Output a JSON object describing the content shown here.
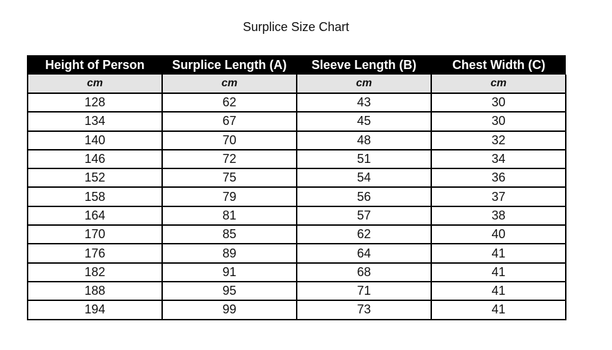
{
  "title": "Surplice Size Chart",
  "columns": [
    "Height of Person",
    "Surplice Length (A)",
    "Sleeve Length (B)",
    "Chest Width (C)"
  ],
  "units": [
    "cm",
    "cm",
    "cm",
    "cm"
  ],
  "rows": [
    [
      "128",
      "62",
      "43",
      "30"
    ],
    [
      "134",
      "67",
      "45",
      "30"
    ],
    [
      "140",
      "70",
      "48",
      "32"
    ],
    [
      "146",
      "72",
      "51",
      "34"
    ],
    [
      "152",
      "75",
      "54",
      "36"
    ],
    [
      "158",
      "79",
      "56",
      "37"
    ],
    [
      "164",
      "81",
      "57",
      "38"
    ],
    [
      "170",
      "85",
      "62",
      "40"
    ],
    [
      "176",
      "89",
      "64",
      "41"
    ],
    [
      "182",
      "91",
      "68",
      "41"
    ],
    [
      "188",
      "95",
      "71",
      "41"
    ],
    [
      "194",
      "99",
      "73",
      "41"
    ]
  ],
  "colors": {
    "header_bg": "#000000",
    "units_bg": "#e4e4e4"
  }
}
